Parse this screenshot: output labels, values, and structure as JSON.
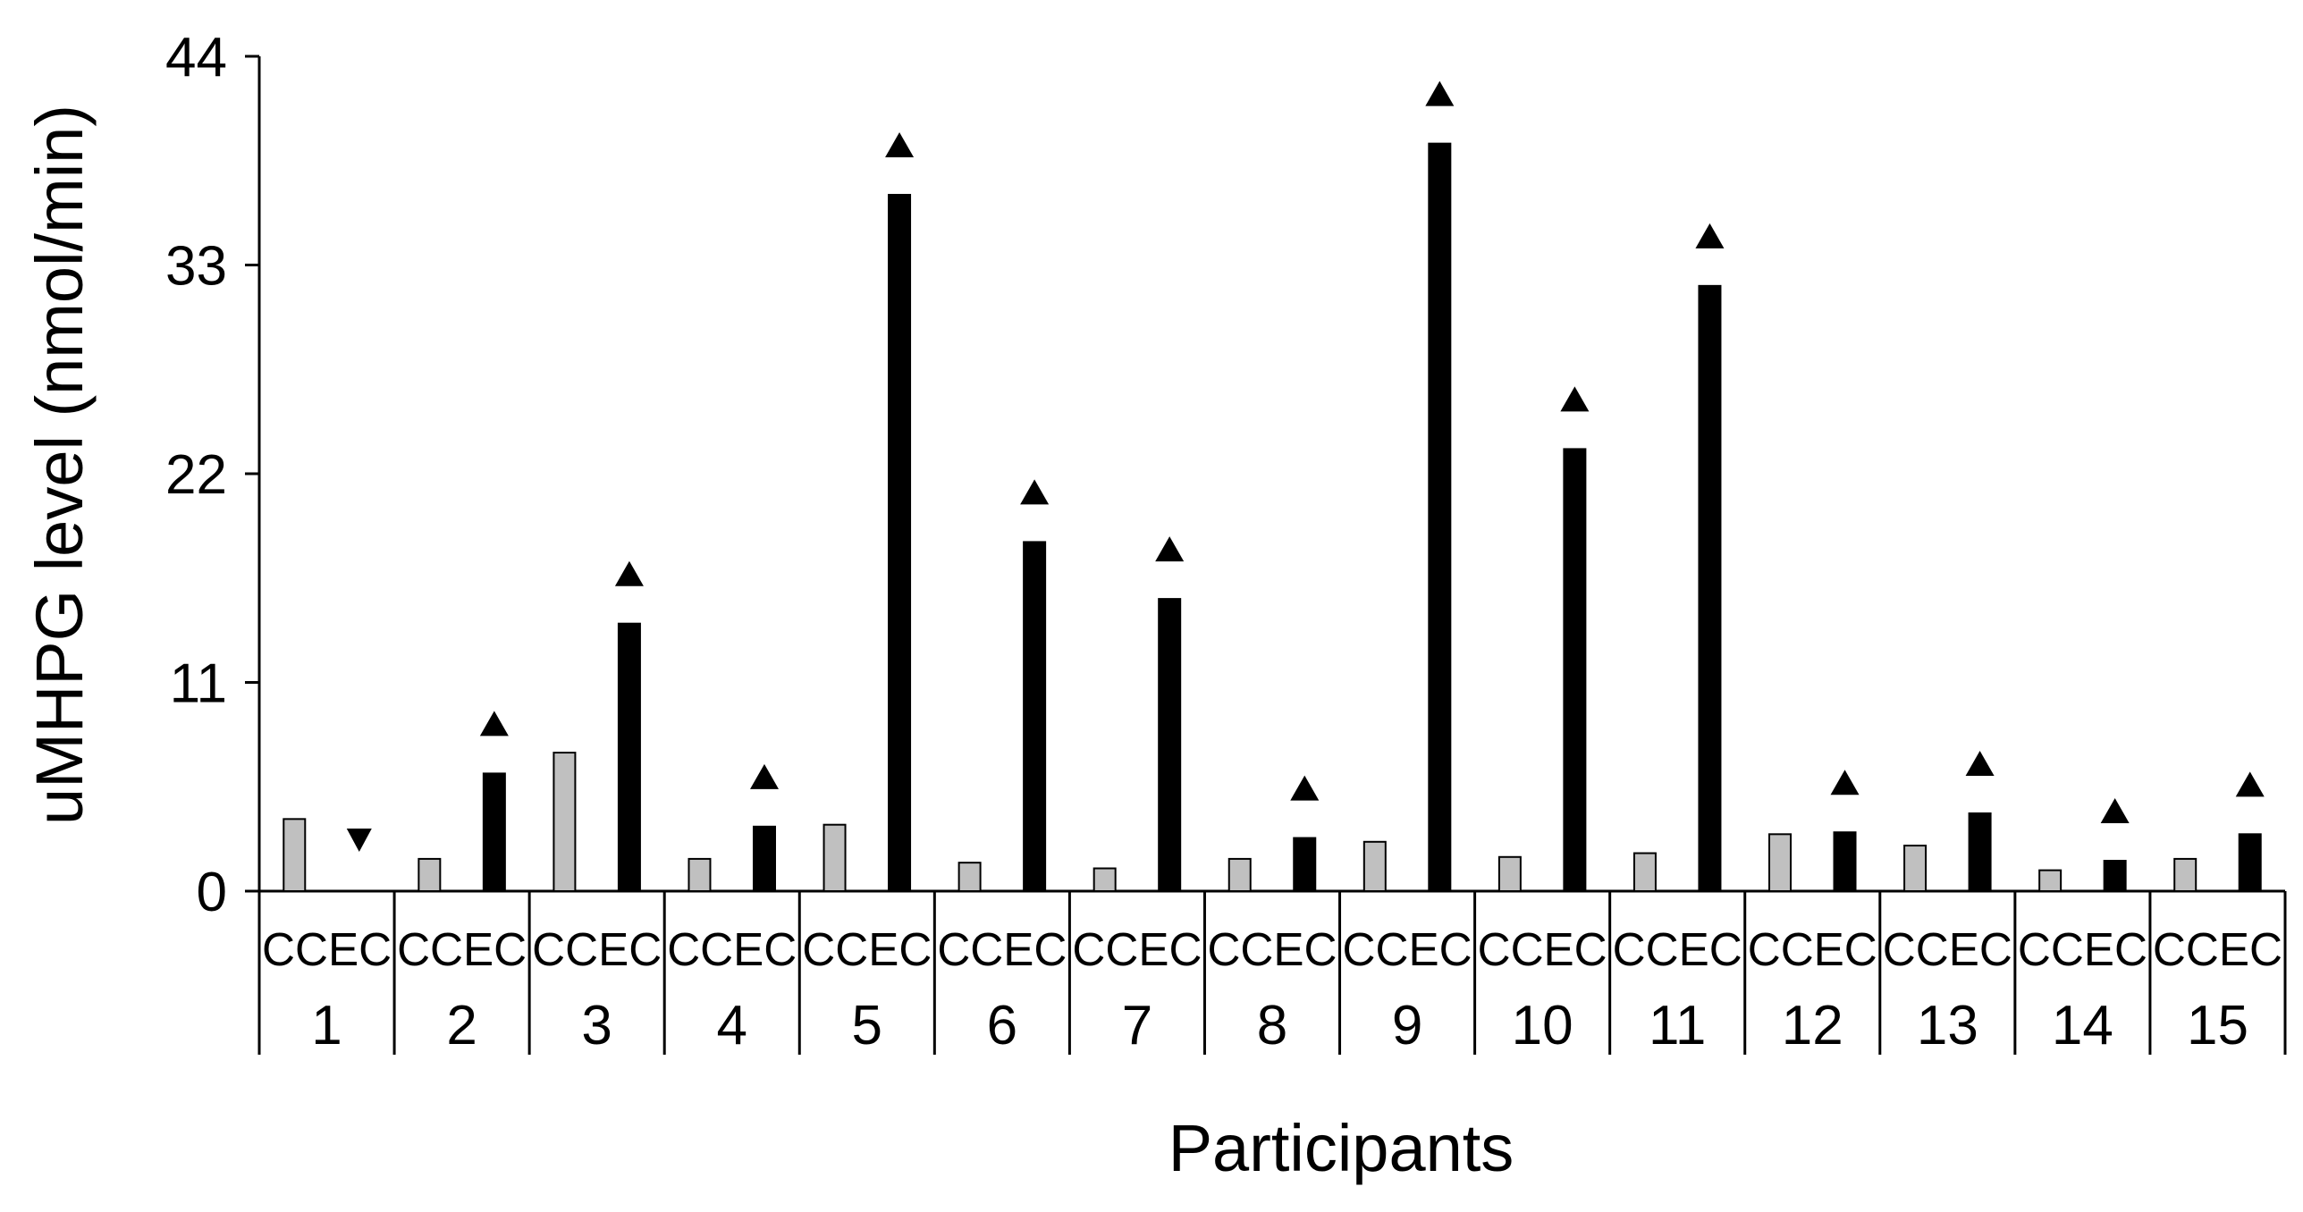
{
  "chart_data": {
    "type": "bar",
    "xlabel": "Participants",
    "ylabel": "uMHPG level (nmol/min)",
    "ylim": [
      0,
      44
    ],
    "yticks": [
      0,
      11,
      22,
      33,
      44
    ],
    "ytick_labels": [
      "0",
      "11",
      "22",
      "33",
      "44"
    ],
    "categories": [
      "1",
      "2",
      "3",
      "4",
      "5",
      "6",
      "7",
      "8",
      "9",
      "10",
      "11",
      "12",
      "13",
      "14",
      "15"
    ],
    "subcategory_label": "CCEC",
    "series": [
      {
        "values": [
          3.8,
          1.7,
          7.3,
          1.7,
          3.5,
          1.5,
          1.2,
          1.7,
          2.6,
          1.8,
          2.0,
          3.0,
          2.4,
          1.1,
          1.7
        ],
        "color": "#c0c0c0"
      },
      {
        "values": [
          0.0,
          6.2,
          14.1,
          3.4,
          36.7,
          18.4,
          15.4,
          2.8,
          39.4,
          23.3,
          31.9,
          3.1,
          4.1,
          1.6,
          3.0
        ],
        "color": "#000000"
      }
    ],
    "markers": [
      "down",
      "up",
      "up",
      "up",
      "up",
      "up",
      "up",
      "up",
      "up",
      "up",
      "up",
      "up",
      "up",
      "up",
      "up"
    ],
    "grid": false,
    "legend": "none"
  }
}
